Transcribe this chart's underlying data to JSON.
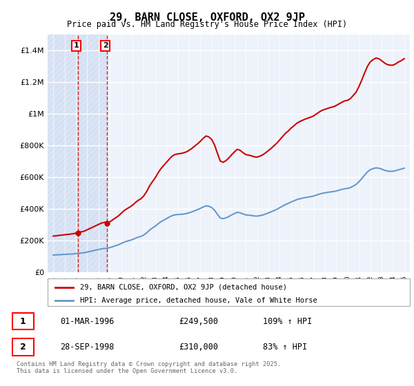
{
  "title1": "29, BARN CLOSE, OXFORD, OX2 9JP",
  "title2": "Price paid vs. HM Land Registry's House Price Index (HPI)",
  "legend1": "29, BARN CLOSE, OXFORD, OX2 9JP (detached house)",
  "legend2": "HPI: Average price, detached house, Vale of White Horse",
  "sale1_date": "01-MAR-1996",
  "sale1_price": "£249,500",
  "sale1_hpi": "109% ↑ HPI",
  "sale1_x": 1996.17,
  "sale1_y": 249500,
  "sale2_date": "28-SEP-1998",
  "sale2_price": "£310,000",
  "sale2_hpi": "83% ↑ HPI",
  "sale2_x": 1998.75,
  "sale2_y": 310000,
  "footer": "Contains HM Land Registry data © Crown copyright and database right 2025.\nThis data is licensed under the Open Government Licence v3.0.",
  "ylim": [
    0,
    1500000
  ],
  "xlim": [
    1993.5,
    2025.5
  ],
  "red_color": "#cc0000",
  "blue_color": "#6699cc",
  "background_color": "#eef2fa"
}
